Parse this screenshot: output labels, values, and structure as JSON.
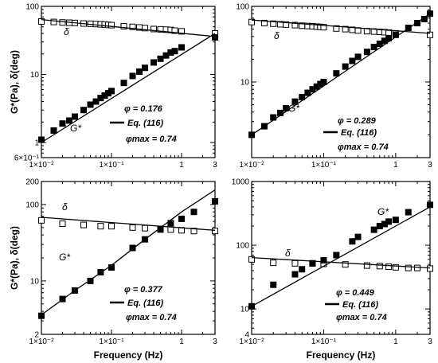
{
  "chart_data": [
    {
      "type": "scatter",
      "panel": "top-left",
      "xscale": "log",
      "yscale": "log",
      "xlim": [
        0.01,
        3
      ],
      "ylim": [
        0.6,
        100
      ],
      "x_ticks": [
        {
          "v": 0.01,
          "label": "1×10⁻²"
        },
        {
          "v": 0.1,
          "label": "1×10⁻¹"
        },
        {
          "v": 1,
          "label": "1"
        },
        {
          "v": 3,
          "label": "3"
        }
      ],
      "y_ticks": [
        {
          "v": 0.6,
          "label": "6×10⁻¹"
        },
        {
          "v": 1,
          "label": "1"
        },
        {
          "v": 10,
          "label": "10"
        },
        {
          "v": 100,
          "label": "100"
        }
      ],
      "xlabel": "",
      "ylabel": "G*(Pa), δ(deg)",
      "annotations": {
        "phi": "φ = 0.176",
        "eq": "Eq. (116)",
        "phimax": "φmax = 0.74",
        "delta_label": "δ",
        "g_label": "G*"
      },
      "series": [
        {
          "name": "δ",
          "marker": "open-square",
          "x": [
            0.01,
            0.015,
            0.02,
            0.025,
            0.03,
            0.04,
            0.05,
            0.06,
            0.07,
            0.08,
            0.09,
            0.1,
            0.15,
            0.2,
            0.25,
            0.3,
            0.4,
            0.5,
            0.6,
            0.7,
            0.8,
            1.0,
            3.0
          ],
          "y": [
            60,
            59,
            58,
            57.5,
            57,
            56,
            55.5,
            55,
            54.5,
            54,
            53.5,
            53,
            51,
            50,
            49,
            48,
            46.5,
            46,
            45.5,
            45,
            44,
            43,
            40
          ]
        },
        {
          "name": "G*",
          "marker": "filled-square",
          "x": [
            0.01,
            0.015,
            0.02,
            0.025,
            0.03,
            0.04,
            0.05,
            0.06,
            0.07,
            0.08,
            0.09,
            0.1,
            0.15,
            0.2,
            0.25,
            0.3,
            0.4,
            0.5,
            0.6,
            0.7,
            0.8,
            1.0,
            3.0
          ],
          "y": [
            1.1,
            1.5,
            1.9,
            2.1,
            2.4,
            3.0,
            3.6,
            4.0,
            4.5,
            4.9,
            5.3,
            5.7,
            7.5,
            9.5,
            11,
            12.5,
            15,
            17,
            19,
            21,
            22,
            25,
            35
          ]
        },
        {
          "name": "Eq. (116) δ",
          "style": "line",
          "x": [
            0.01,
            3
          ],
          "y": [
            64,
            36
          ]
        },
        {
          "name": "Eq. (116) G*",
          "style": "line",
          "x": [
            0.01,
            3
          ],
          "y": [
            1.0,
            40
          ]
        }
      ]
    },
    {
      "type": "scatter",
      "panel": "top-right",
      "xscale": "log",
      "yscale": "log",
      "xlim": [
        0.01,
        3
      ],
      "ylim": [
        1,
        100
      ],
      "x_ticks": [
        {
          "v": 0.01,
          "label": "1×10⁻²"
        },
        {
          "v": 0.1,
          "label": "1×10⁻¹"
        },
        {
          "v": 1,
          "label": "1"
        },
        {
          "v": 3,
          "label": "3"
        }
      ],
      "y_ticks": [
        {
          "v": 1,
          "label": ""
        },
        {
          "v": 10,
          "label": "10"
        },
        {
          "v": 100,
          "label": "100"
        }
      ],
      "xlabel": "",
      "ylabel": "",
      "annotations": {
        "phi": "φ = 0.289",
        "eq": "Eq. (116)",
        "phimax": "φmax = 0.74",
        "delta_label": "δ",
        "g_label": "G*"
      },
      "series": [
        {
          "name": "δ",
          "marker": "open-square",
          "x": [
            0.01,
            0.015,
            0.02,
            0.025,
            0.03,
            0.04,
            0.05,
            0.06,
            0.07,
            0.08,
            0.09,
            0.1,
            0.15,
            0.2,
            0.25,
            0.3,
            0.4,
            0.5,
            0.6,
            0.7,
            0.8,
            1.0,
            3.0
          ],
          "y": [
            62,
            60,
            59,
            58,
            57.5,
            56.5,
            55.5,
            55,
            54.5,
            54,
            53.5,
            53,
            51,
            50,
            49,
            48,
            47,
            46.5,
            46,
            45.5,
            45,
            44,
            42
          ]
        },
        {
          "name": "G*",
          "marker": "filled-square",
          "x": [
            0.01,
            0.015,
            0.02,
            0.025,
            0.03,
            0.04,
            0.05,
            0.06,
            0.07,
            0.08,
            0.09,
            0.1,
            0.15,
            0.2,
            0.25,
            0.3,
            0.4,
            0.5,
            0.6,
            0.7,
            0.8,
            1.0,
            1.5,
            2.0,
            2.5,
            3.0
          ],
          "y": [
            2.0,
            2.6,
            3.4,
            3.9,
            4.5,
            5.5,
            6.3,
            7.2,
            8.0,
            8.7,
            9.4,
            10,
            13,
            16,
            19,
            21.5,
            25,
            29,
            32,
            35,
            38,
            42,
            52,
            60,
            68,
            80
          ]
        },
        {
          "name": "Eq. (116) δ",
          "style": "line",
          "x": [
            0.01,
            3
          ],
          "y": [
            66,
            44
          ]
        },
        {
          "name": "Eq. (116) G*",
          "style": "line",
          "x": [
            0.01,
            3
          ],
          "y": [
            2.0,
            80
          ]
        }
      ]
    },
    {
      "type": "scatter",
      "panel": "bottom-left",
      "xscale": "log",
      "yscale": "log",
      "xlim": [
        0.01,
        3
      ],
      "ylim": [
        2,
        200
      ],
      "x_ticks": [
        {
          "v": 0.01,
          "label": "1×10⁻²"
        },
        {
          "v": 0.1,
          "label": "1×10⁻¹"
        },
        {
          "v": 1,
          "label": "1"
        },
        {
          "v": 3,
          "label": "3"
        }
      ],
      "y_ticks": [
        {
          "v": 2,
          "label": "2"
        },
        {
          "v": 10,
          "label": "10"
        },
        {
          "v": 100,
          "label": "100"
        },
        {
          "v": 200,
          "label": "200"
        }
      ],
      "xlabel": "Frequency (Hz)",
      "ylabel": "G*(Pa), δ(deg)",
      "annotations": {
        "phi": "φ = 0.377",
        "eq": "Eq. (116)",
        "phimax": "φmax = 0.74",
        "delta_label": "δ",
        "g_label": "G*"
      },
      "series": [
        {
          "name": "δ",
          "marker": "open-square",
          "x": [
            0.01,
            0.02,
            0.04,
            0.07,
            0.1,
            0.2,
            0.3,
            0.5,
            0.7,
            1.0,
            1.5,
            3.0
          ],
          "y": [
            62,
            56,
            54,
            52,
            52,
            50,
            49,
            48,
            47,
            46,
            45,
            45
          ]
        },
        {
          "name": "G*",
          "marker": "filled-square",
          "x": [
            0.01,
            0.02,
            0.03,
            0.05,
            0.07,
            0.1,
            0.2,
            0.3,
            0.5,
            0.7,
            1.0,
            1.5,
            3.0
          ],
          "y": [
            3.5,
            5.8,
            7.5,
            10,
            13,
            15,
            27,
            35,
            47,
            57,
            65,
            80,
            110
          ]
        },
        {
          "name": "Eq. (116) δ",
          "style": "line",
          "x": [
            0.01,
            3
          ],
          "y": [
            68,
            46
          ]
        },
        {
          "name": "Eq. (116) G*",
          "style": "line",
          "x": [
            0.01,
            0.03,
            0.1,
            0.3,
            1.0,
            3.0
          ],
          "y": [
            3.6,
            7.5,
            16,
            35,
            80,
            155
          ]
        }
      ]
    },
    {
      "type": "scatter",
      "panel": "bottom-right",
      "xscale": "log",
      "yscale": "log",
      "xlim": [
        0.01,
        3
      ],
      "ylim": [
        4,
        1000
      ],
      "x_ticks": [
        {
          "v": 0.01,
          "label": "1×10⁻²"
        },
        {
          "v": 0.1,
          "label": "1×10⁻¹"
        },
        {
          "v": 1,
          "label": "1"
        },
        {
          "v": 3,
          "label": "3"
        }
      ],
      "y_ticks": [
        {
          "v": 4,
          "label": "4"
        },
        {
          "v": 10,
          "label": "10"
        },
        {
          "v": 100,
          "label": "100"
        },
        {
          "v": 1000,
          "label": "1000"
        }
      ],
      "xlabel": "Frequency (Hz)",
      "ylabel": "",
      "annotations": {
        "phi": "φ = 0.449",
        "eq": "Eq. (116)",
        "phimax": "φmax = 0.74",
        "delta_label": "δ",
        "g_label": "G*"
      },
      "series": [
        {
          "name": "δ",
          "marker": "open-square",
          "x": [
            0.01,
            0.02,
            0.04,
            0.07,
            0.1,
            0.2,
            0.4,
            0.6,
            0.8,
            1.0,
            1.5,
            2.0,
            3.0
          ],
          "y": [
            60,
            53,
            52,
            52,
            51,
            50,
            48,
            47,
            46,
            45,
            44,
            44,
            43
          ]
        },
        {
          "name": "G*",
          "marker": "filled-square",
          "x": [
            0.01,
            0.02,
            0.04,
            0.05,
            0.07,
            0.1,
            0.15,
            0.25,
            0.3,
            0.5,
            0.6,
            0.7,
            0.8,
            1.0,
            1.5,
            3.0
          ],
          "y": [
            11,
            24,
            35,
            42,
            52,
            58,
            70,
            115,
            135,
            175,
            200,
            215,
            235,
            250,
            330,
            430
          ]
        },
        {
          "name": "Eq. (116) δ",
          "style": "line",
          "x": [
            0.01,
            3
          ],
          "y": [
            64,
            44
          ]
        },
        {
          "name": "Eq. (116) G*",
          "style": "line",
          "x": [
            0.01,
            3
          ],
          "y": [
            11,
            400
          ]
        }
      ]
    }
  ]
}
